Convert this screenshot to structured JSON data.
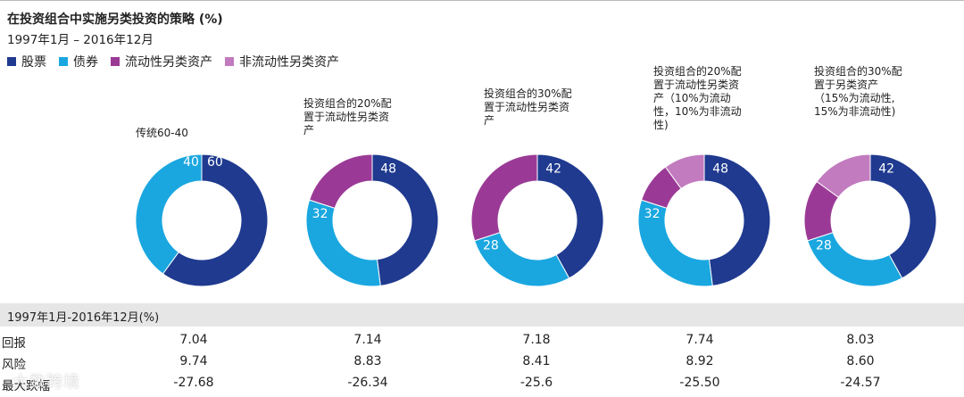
{
  "title": "在投资组合中实施另类投资的策略 (%)",
  "subtitle": "1997年1月 – 2016年12月",
  "legend": [
    {
      "label": "股票",
      "color": "#1f3a8f"
    },
    {
      "label": "债券",
      "color": "#1aa7e0"
    },
    {
      "label": "流动性另类资产",
      "color": "#9b3a96"
    },
    {
      "label": "非流动性另类资产",
      "color": "#c27bbf"
    }
  ],
  "chart_data": {
    "type": "pie",
    "donuts": [
      {
        "label_lines": [
          "传统60-40"
        ],
        "slices": [
          {
            "series": "股票",
            "value": 60
          },
          {
            "series": "债券",
            "value": 40
          }
        ]
      },
      {
        "label_lines": [
          "投资组合的20%配",
          "置于流动性另类资",
          "产"
        ],
        "slices": [
          {
            "series": "股票",
            "value": 48
          },
          {
            "series": "债券",
            "value": 32
          },
          {
            "series": "流动性另类资产",
            "value": 20
          }
        ]
      },
      {
        "label_lines": [
          "投资组合的30%配",
          "置于流动性另类资",
          "产"
        ],
        "slices": [
          {
            "series": "股票",
            "value": 42
          },
          {
            "series": "债券",
            "value": 28
          },
          {
            "series": "流动性另类资产",
            "value": 30
          }
        ]
      },
      {
        "label_lines": [
          "投资组合的20%配",
          "置于流动性另类资",
          "产（10%为流动",
          "性，10%为非流动",
          "性)"
        ],
        "slices": [
          {
            "series": "股票",
            "value": 48
          },
          {
            "series": "债券",
            "value": 32
          },
          {
            "series": "流动性另类资产",
            "value": 10
          },
          {
            "series": "非流动性另类资产",
            "value": 10
          }
        ]
      },
      {
        "label_lines": [
          "投资组合的30%配",
          "置于另类资产",
          "（15%为流动性,",
          "15%为非流动性)"
        ],
        "slices": [
          {
            "series": "股票",
            "value": 42
          },
          {
            "series": "债券",
            "value": 28
          },
          {
            "series": "流动性另类资产",
            "value": 15
          },
          {
            "series": "非流动性另类资产",
            "value": 15
          }
        ]
      }
    ]
  },
  "table": {
    "header": "1997年1月-2016年12月(%)",
    "rows": [
      {
        "label": "回报",
        "values": [
          "7.04",
          "7.14",
          "7.18",
          "7.74",
          "8.03"
        ]
      },
      {
        "label": "风险",
        "values": [
          "9.74",
          "8.83",
          "8.41",
          "8.92",
          "8.60"
        ]
      },
      {
        "label": "最大跌幅",
        "values": [
          "-27.68",
          "-26.34",
          "-25.6",
          "-25.50",
          "-24.57"
        ]
      }
    ]
  },
  "watermark": "大数跨境"
}
